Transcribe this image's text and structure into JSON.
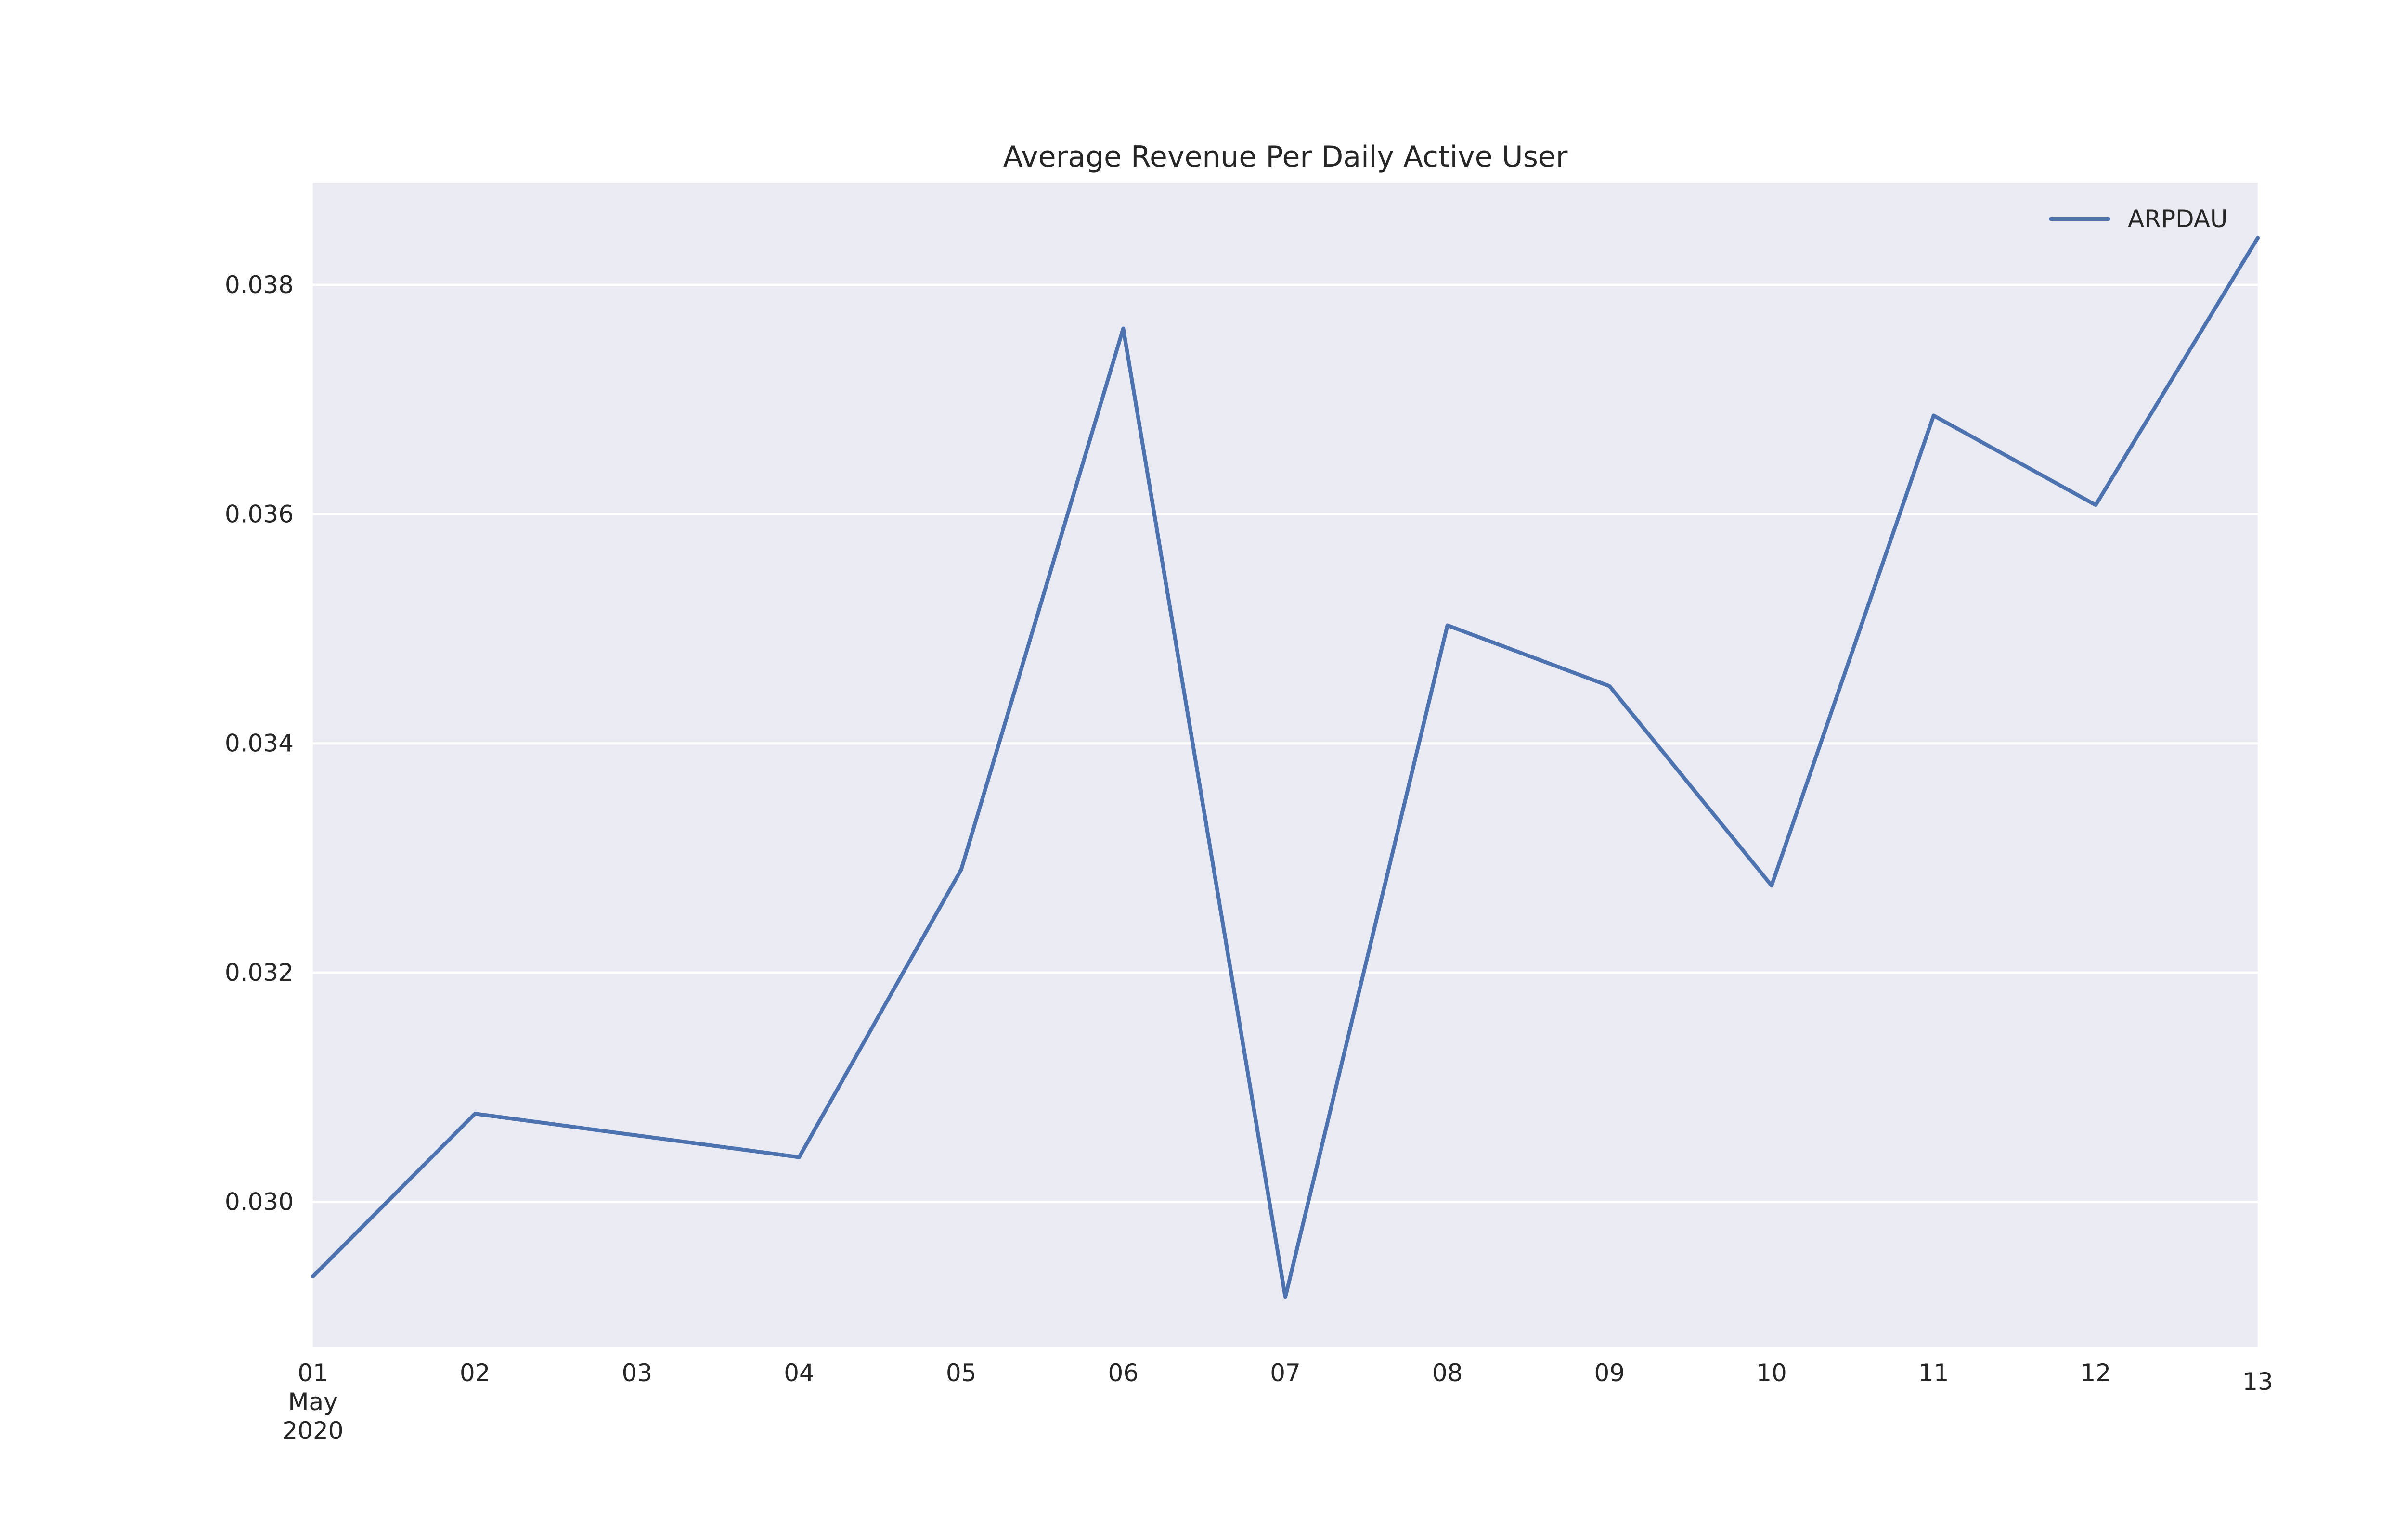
{
  "chart_data": {
    "type": "line",
    "title": "Average Revenue Per Daily Active User",
    "xlabel": "",
    "ylabel": "",
    "x": [
      "2020-05-01",
      "2020-05-02",
      "2020-05-03",
      "2020-05-04",
      "2020-05-05",
      "2020-05-06",
      "2020-05-07",
      "2020-05-08",
      "2020-05-09",
      "2020-05-10",
      "2020-05-11",
      "2020-05-12",
      "2020-05-13"
    ],
    "x_tick_labels": [
      "01",
      "02",
      "03",
      "04",
      "05",
      "06",
      "07",
      "08",
      "09",
      "10",
      "11",
      "12",
      "13"
    ],
    "x_tick_sublabels": [
      "May",
      "2020"
    ],
    "series": [
      {
        "name": "ARPDAU",
        "color": "#4c72b0",
        "values": [
          0.02935,
          0.03077,
          0.03058,
          0.03039,
          0.0329,
          0.03762,
          0.02917,
          0.03503,
          0.0345,
          0.03276,
          0.03686,
          0.03608,
          0.03841
        ]
      }
    ],
    "ylim": [
      0.02873,
      0.03889
    ],
    "y_ticks": [
      "0.030",
      "0.032",
      "0.034",
      "0.036",
      "0.038"
    ],
    "grid": true,
    "grid_axis": "y",
    "legend": "top-right",
    "plot_background": "#eaeaf2",
    "grid_color": "#ffffff"
  }
}
